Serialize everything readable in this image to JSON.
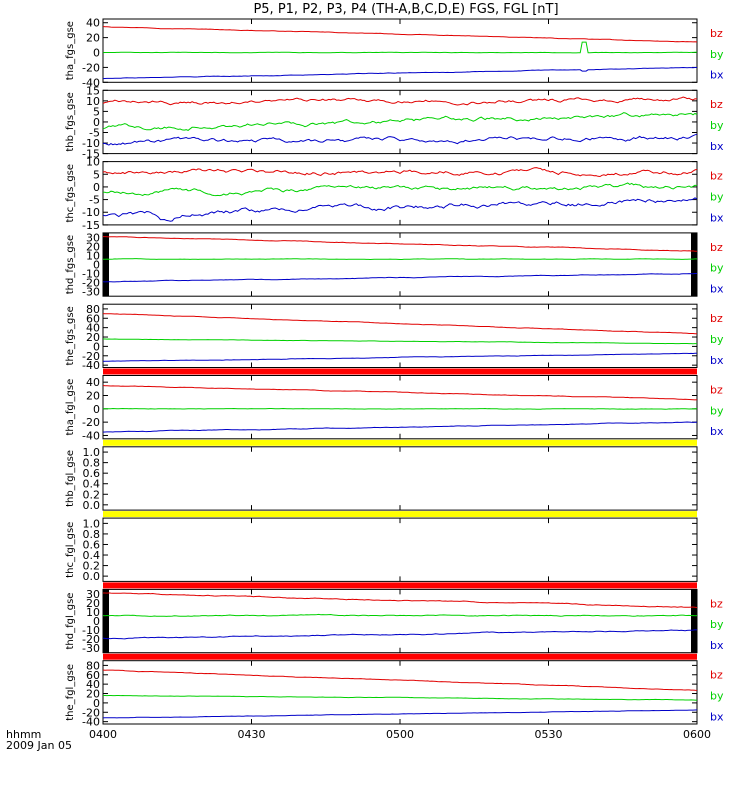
{
  "chart_data": {
    "type": "line",
    "title": "P5, P1, P2, P3, P4 (TH-A,B,C,D,E) FGS, FGL [nT]",
    "x_ticks": [
      "0400",
      "0430",
      "0500",
      "0530",
      "0600"
    ],
    "x_range": [
      "0400",
      "0600"
    ],
    "x_footer_top": "hhmm",
    "x_footer_bottom": "2009 Jan 05",
    "colors": {
      "bz": "#e00000",
      "by": "#00d000",
      "bx": "#0000c8",
      "bar_red": "#ff0000",
      "bar_yellow": "#ffff00"
    },
    "panels": [
      {
        "ylabel": "tha_fgs_gse",
        "ylim": [
          -40,
          45
        ],
        "yticks": [
          "40",
          "20",
          "0",
          "-20",
          "-40"
        ],
        "yvals": [
          40,
          20,
          0,
          -20,
          -40
        ],
        "series": [
          {
            "name": "bz",
            "color": "#e00000",
            "start": 35,
            "end": 14,
            "noise": 0.4
          },
          {
            "name": "by",
            "color": "#00d000",
            "start": 0,
            "end": 0,
            "noise": 0.3,
            "spike_at": 0.81,
            "spike_val": 14
          },
          {
            "name": "bx",
            "color": "#0000c8",
            "start": -35,
            "end": -20,
            "noise": 0.4,
            "spike_at": 0.81,
            "spike_val": -25
          }
        ]
      },
      {
        "ylabel": "thb_fgs_gse",
        "ylim": [
          -15,
          15
        ],
        "yticks": [
          "15",
          "10",
          "5",
          "0",
          "-5",
          "-10",
          "-15"
        ],
        "yvals": [
          15,
          10,
          5,
          0,
          -5,
          -10,
          -15
        ],
        "series": [
          {
            "name": "bz",
            "color": "#e00000",
            "start": 9,
            "end": 11,
            "noise": 1.0
          },
          {
            "name": "by",
            "color": "#00d000",
            "start": -3,
            "end": 4,
            "noise": 1.2
          },
          {
            "name": "bx",
            "color": "#0000c8",
            "start": -10,
            "end": -7,
            "noise": 1.2
          }
        ]
      },
      {
        "ylabel": "thc_fgs_gse",
        "ylim": [
          -15,
          10
        ],
        "yticks": [
          "10",
          "5",
          "0",
          "-5",
          "-10",
          "-15"
        ],
        "yvals": [
          10,
          5,
          0,
          -5,
          -10,
          -15
        ],
        "series": [
          {
            "name": "bz",
            "color": "#e00000",
            "start": 6,
            "end": 6,
            "noise": 1.0
          },
          {
            "name": "by",
            "color": "#00d000",
            "start": -2,
            "end": 0,
            "noise": 1.0
          },
          {
            "name": "bx",
            "color": "#0000c8",
            "start": -11,
            "end": -5,
            "noise": 1.2,
            "dip_at": 0.11,
            "dip_val": -14
          }
        ]
      },
      {
        "ylabel": "thd_fgs_gse",
        "ylim": [
          -35,
          35
        ],
        "yticks": [
          "30",
          "20",
          "10",
          "0",
          "-10",
          "-20",
          "-30"
        ],
        "yvals": [
          30,
          20,
          10,
          0,
          -10,
          -20,
          -30
        ],
        "series": [
          {
            "name": "bz",
            "color": "#e00000",
            "start": 31,
            "end": 15,
            "noise": 0.4
          },
          {
            "name": "by",
            "color": "#00d000",
            "start": 6,
            "end": 6,
            "noise": 0.3
          },
          {
            "name": "bx",
            "color": "#0000c8",
            "start": -19,
            "end": -10,
            "noise": 0.4
          }
        ]
      },
      {
        "ylabel": "the_fgs_gse",
        "ylim": [
          -45,
          90
        ],
        "yticks": [
          "80",
          "60",
          "40",
          "20",
          "0",
          "-20",
          "-40"
        ],
        "yvals": [
          80,
          60,
          40,
          20,
          0,
          -20,
          -40
        ],
        "series": [
          {
            "name": "bz",
            "color": "#e00000",
            "start": 70,
            "end": 27,
            "noise": 0.6
          },
          {
            "name": "by",
            "color": "#00d000",
            "start": 16,
            "end": 6,
            "noise": 0.4
          },
          {
            "name": "bx",
            "color": "#0000c8",
            "start": -32,
            "end": -15,
            "noise": 0.5
          }
        ]
      },
      {
        "ylabel": "tha_fgl_gse",
        "ylim": [
          -45,
          50
        ],
        "yticks": [
          "40",
          "20",
          "0",
          "-20",
          "-40"
        ],
        "yvals": [
          40,
          20,
          0,
          -20,
          -40
        ],
        "series": [
          {
            "name": "bz",
            "color": "#e00000",
            "start": 35,
            "end": 14,
            "noise": 0.5
          },
          {
            "name": "by",
            "color": "#00d000",
            "start": 0,
            "end": 0,
            "noise": 0.4
          },
          {
            "name": "bx",
            "color": "#0000c8",
            "start": -35,
            "end": -20,
            "noise": 0.5
          }
        ]
      },
      {
        "ylabel": "thb_fgl_gse",
        "ylim": [
          -0.1,
          1.1
        ],
        "yticks": [
          "1.0",
          "0.8",
          "0.6",
          "0.4",
          "0.2",
          "0.0"
        ],
        "yvals": [
          1.0,
          0.8,
          0.6,
          0.4,
          0.2,
          0.0
        ],
        "series": []
      },
      {
        "ylabel": "thc_fgl_gse",
        "ylim": [
          -0.1,
          1.1
        ],
        "yticks": [
          "1.0",
          "0.8",
          "0.6",
          "0.4",
          "0.2",
          "0.0"
        ],
        "yvals": [
          1.0,
          0.8,
          0.6,
          0.4,
          0.2,
          0.0
        ],
        "series": []
      },
      {
        "ylabel": "thd_fgl_gse",
        "ylim": [
          -35,
          35
        ],
        "yticks": [
          "30",
          "20",
          "10",
          "0",
          "-10",
          "-20",
          "-30"
        ],
        "yvals": [
          30,
          20,
          10,
          0,
          -10,
          -20,
          -30
        ],
        "series": [
          {
            "name": "bz",
            "color": "#e00000",
            "start": 31,
            "end": 15,
            "noise": 0.6
          },
          {
            "name": "by",
            "color": "#00d000",
            "start": 6,
            "end": 6,
            "noise": 0.6
          },
          {
            "name": "bx",
            "color": "#0000c8",
            "start": -19,
            "end": -10,
            "noise": 0.6
          }
        ]
      },
      {
        "ylabel": "the_fgl_gse",
        "ylim": [
          -45,
          90
        ],
        "yticks": [
          "80",
          "60",
          "40",
          "20",
          "0",
          "-20",
          "-40"
        ],
        "yvals": [
          80,
          60,
          40,
          20,
          0,
          -20,
          -40
        ],
        "series": [
          {
            "name": "bz",
            "color": "#e00000",
            "start": 70,
            "end": 27,
            "noise": 0.7
          },
          {
            "name": "by",
            "color": "#00d000",
            "start": 16,
            "end": 6,
            "noise": 0.5
          },
          {
            "name": "bx",
            "color": "#0000c8",
            "start": -32,
            "end": -15,
            "noise": 0.5
          }
        ]
      }
    ],
    "status_bars": [
      {
        "after_panel": 4,
        "color": "#ff0000"
      },
      {
        "after_panel": 5,
        "color": "#ffff00"
      },
      {
        "after_panel": 6,
        "color": "#ffff00"
      },
      {
        "after_panel": 7,
        "color": "#ff0000"
      },
      {
        "after_panel": 8,
        "color": "#ff0000"
      }
    ],
    "black_edge_bars": [
      3,
      8
    ]
  }
}
